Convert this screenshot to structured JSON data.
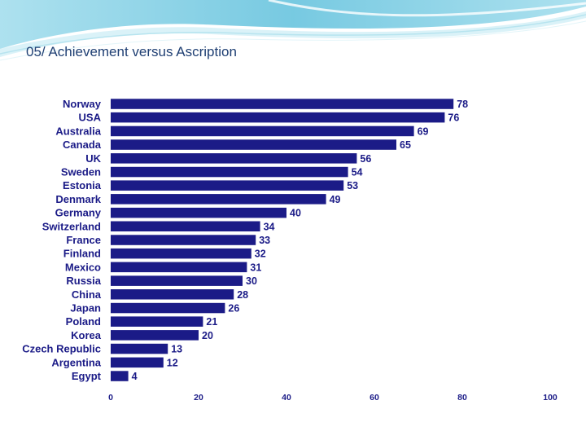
{
  "slide": {
    "title": "05/ Achievement versus Ascription"
  },
  "colors": {
    "bar": "#1b1b87",
    "text": "#1b1b87",
    "title": "#1f3f73",
    "header_light": "#cdeff6",
    "header_mid": "#8fd3e6",
    "header_dark": "#3aa6c9"
  },
  "chart_data": {
    "type": "bar",
    "orientation": "horizontal",
    "categories": [
      "Norway",
      "USA",
      "Australia",
      "Canada",
      "UK",
      "Sweden",
      "Estonia",
      "Denmark",
      "Germany",
      "Switzerland",
      "France",
      "Finland",
      "Mexico",
      "Russia",
      "China",
      "Japan",
      "Poland",
      "Korea",
      "Czech Republic",
      "Argentina",
      "Egypt"
    ],
    "values": [
      78,
      76,
      69,
      65,
      56,
      54,
      53,
      49,
      40,
      34,
      33,
      32,
      31,
      30,
      28,
      26,
      21,
      20,
      13,
      12,
      4
    ],
    "title": "",
    "xlabel": "",
    "ylabel": "",
    "xlim": [
      0,
      100
    ],
    "xticks": [
      0,
      20,
      40,
      60,
      80,
      100
    ],
    "grid": false,
    "legend": "none"
  }
}
